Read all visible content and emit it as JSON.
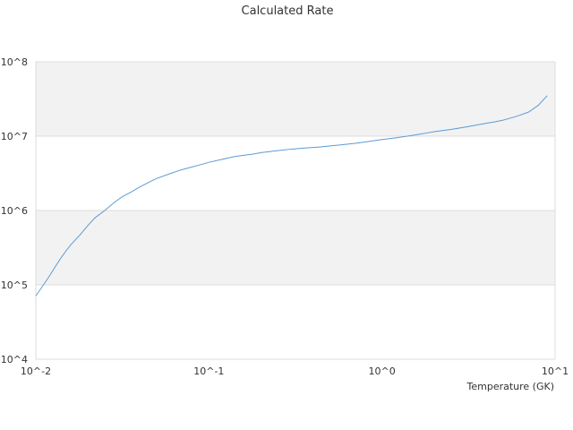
{
  "chart_data": {
    "type": "line",
    "title": "Calculated Rate",
    "xlabel": "Temperature (GK)",
    "ylabel": "",
    "x_scale": "log",
    "y_scale": "log",
    "xlim": [
      0.01,
      10
    ],
    "ylim": [
      10000,
      100000000
    ],
    "x_tick_labels": [
      "10^-2",
      "10^-1",
      "10^0",
      "10^1"
    ],
    "y_tick_labels": [
      "10^4",
      "10^5",
      "10^6",
      "10^7",
      "10^8"
    ],
    "grid": true,
    "band_colors": [
      "#f2f2f2",
      "#ffffff"
    ],
    "series": [
      {
        "color": "#5b9bd5",
        "x": [
          0.01,
          0.011,
          0.012,
          0.013,
          0.014,
          0.015,
          0.016,
          0.018,
          0.02,
          0.022,
          0.025,
          0.028,
          0.03,
          0.032,
          0.035,
          0.04,
          0.045,
          0.05,
          0.06,
          0.07,
          0.08,
          0.09,
          0.1,
          0.12,
          0.14,
          0.16,
          0.18,
          0.2,
          0.25,
          0.3,
          0.35,
          0.4,
          0.45,
          0.5,
          0.6,
          0.7,
          0.8,
          0.9,
          1.0,
          1.2,
          1.4,
          1.6,
          1.8,
          2.0,
          2.5,
          3.0,
          3.5,
          4.0,
          4.5,
          5.0,
          6.0,
          7.0,
          8.0,
          9.0
        ],
        "y": [
          71000,
          98000,
          132000,
          178000,
          232000,
          290000,
          350000,
          470000,
          630000,
          800000,
          1000000,
          1250000,
          1410000,
          1560000,
          1740000,
          2080000,
          2400000,
          2700000,
          3150000,
          3550000,
          3850000,
          4150000,
          4450000,
          4900000,
          5300000,
          5550000,
          5750000,
          6000000,
          6400000,
          6700000,
          6900000,
          7050000,
          7200000,
          7400000,
          7700000,
          8000000,
          8350000,
          8700000,
          9000000,
          9500000,
          10000000,
          10500000,
          11000000,
          11500000,
          12300000,
          13200000,
          14100000,
          14900000,
          15600000,
          16400000,
          18500000,
          21000000,
          26000000,
          35000000
        ]
      }
    ]
  }
}
